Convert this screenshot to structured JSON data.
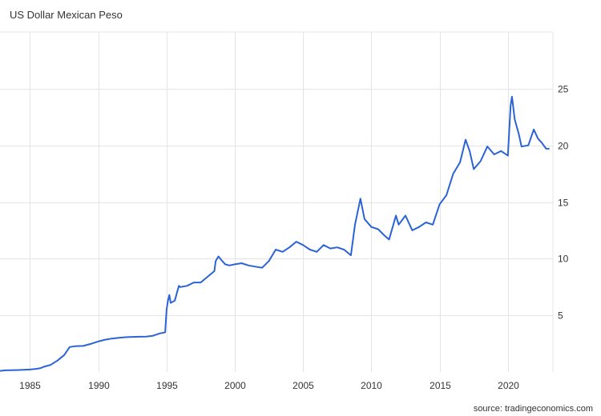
{
  "header": {
    "title": "US Dollar Mexican Peso"
  },
  "footer": {
    "source": "source: tradingeconomics.com"
  },
  "colors": {
    "line": "#2b63d6",
    "grid": "#e4e4e4",
    "text": "#333333",
    "background": "#ffffff"
  },
  "chart_data": {
    "type": "line",
    "title": "US Dollar Mexican Peso",
    "xlabel": "",
    "ylabel": "",
    "xlim": [
      1982.8,
      2023.3
    ],
    "ylim": [
      0,
      30
    ],
    "x_ticks": [
      1985,
      1990,
      1995,
      2000,
      2005,
      2010,
      2015,
      2020
    ],
    "y_ticks": [
      5,
      10,
      15,
      20,
      25
    ],
    "grid": true,
    "y_axis_side": "right",
    "series": [
      {
        "name": "",
        "points": [
          [
            1982.8,
            0.1
          ],
          [
            1983.2,
            0.15
          ],
          [
            1984.0,
            0.17
          ],
          [
            1984.5,
            0.19
          ],
          [
            1985.0,
            0.22
          ],
          [
            1985.5,
            0.28
          ],
          [
            1985.8,
            0.35
          ],
          [
            1986.0,
            0.46
          ],
          [
            1986.5,
            0.62
          ],
          [
            1987.0,
            1.0
          ],
          [
            1987.5,
            1.5
          ],
          [
            1987.9,
            2.2
          ],
          [
            1988.3,
            2.28
          ],
          [
            1988.9,
            2.3
          ],
          [
            1989.5,
            2.5
          ],
          [
            1990.0,
            2.7
          ],
          [
            1990.5,
            2.85
          ],
          [
            1991.0,
            2.95
          ],
          [
            1991.5,
            3.02
          ],
          [
            1992.0,
            3.07
          ],
          [
            1992.5,
            3.1
          ],
          [
            1993.0,
            3.11
          ],
          [
            1993.5,
            3.12
          ],
          [
            1994.0,
            3.2
          ],
          [
            1994.5,
            3.4
          ],
          [
            1994.9,
            3.5
          ],
          [
            1995.0,
            5.5
          ],
          [
            1995.1,
            6.3
          ],
          [
            1995.2,
            6.8
          ],
          [
            1995.3,
            6.1
          ],
          [
            1995.6,
            6.3
          ],
          [
            1995.9,
            7.6
          ],
          [
            1996.0,
            7.5
          ],
          [
            1996.5,
            7.6
          ],
          [
            1997.0,
            7.9
          ],
          [
            1997.5,
            7.9
          ],
          [
            1998.0,
            8.4
          ],
          [
            1998.5,
            8.9
          ],
          [
            1998.6,
            9.8
          ],
          [
            1998.8,
            10.2
          ],
          [
            1999.0,
            9.9
          ],
          [
            1999.3,
            9.5
          ],
          [
            1999.6,
            9.4
          ],
          [
            2000.0,
            9.5
          ],
          [
            2000.5,
            9.6
          ],
          [
            2001.0,
            9.4
          ],
          [
            2001.5,
            9.3
          ],
          [
            2002.0,
            9.2
          ],
          [
            2002.5,
            9.8
          ],
          [
            2003.0,
            10.8
          ],
          [
            2003.5,
            10.6
          ],
          [
            2004.0,
            11.0
          ],
          [
            2004.5,
            11.5
          ],
          [
            2005.0,
            11.2
          ],
          [
            2005.5,
            10.8
          ],
          [
            2006.0,
            10.6
          ],
          [
            2006.5,
            11.2
          ],
          [
            2007.0,
            10.9
          ],
          [
            2007.5,
            11.0
          ],
          [
            2008.0,
            10.8
          ],
          [
            2008.5,
            10.3
          ],
          [
            2008.8,
            13.0
          ],
          [
            2009.2,
            15.3
          ],
          [
            2009.5,
            13.5
          ],
          [
            2010.0,
            12.8
          ],
          [
            2010.5,
            12.6
          ],
          [
            2011.0,
            12.0
          ],
          [
            2011.3,
            11.7
          ],
          [
            2011.8,
            13.8
          ],
          [
            2012.0,
            13.0
          ],
          [
            2012.5,
            13.8
          ],
          [
            2013.0,
            12.5
          ],
          [
            2013.5,
            12.8
          ],
          [
            2014.0,
            13.2
          ],
          [
            2014.5,
            13.0
          ],
          [
            2015.0,
            14.8
          ],
          [
            2015.5,
            15.6
          ],
          [
            2016.0,
            17.5
          ],
          [
            2016.5,
            18.5
          ],
          [
            2016.9,
            20.5
          ],
          [
            2017.2,
            19.5
          ],
          [
            2017.5,
            17.9
          ],
          [
            2018.0,
            18.6
          ],
          [
            2018.5,
            19.9
          ],
          [
            2019.0,
            19.2
          ],
          [
            2019.5,
            19.5
          ],
          [
            2020.0,
            19.1
          ],
          [
            2020.2,
            23.5
          ],
          [
            2020.3,
            24.3
          ],
          [
            2020.5,
            22.3
          ],
          [
            2020.8,
            21.0
          ],
          [
            2021.0,
            19.9
          ],
          [
            2021.5,
            20.0
          ],
          [
            2021.9,
            21.4
          ],
          [
            2022.2,
            20.6
          ],
          [
            2022.5,
            20.2
          ],
          [
            2022.8,
            19.7
          ],
          [
            2023.0,
            19.7
          ]
        ]
      }
    ]
  }
}
